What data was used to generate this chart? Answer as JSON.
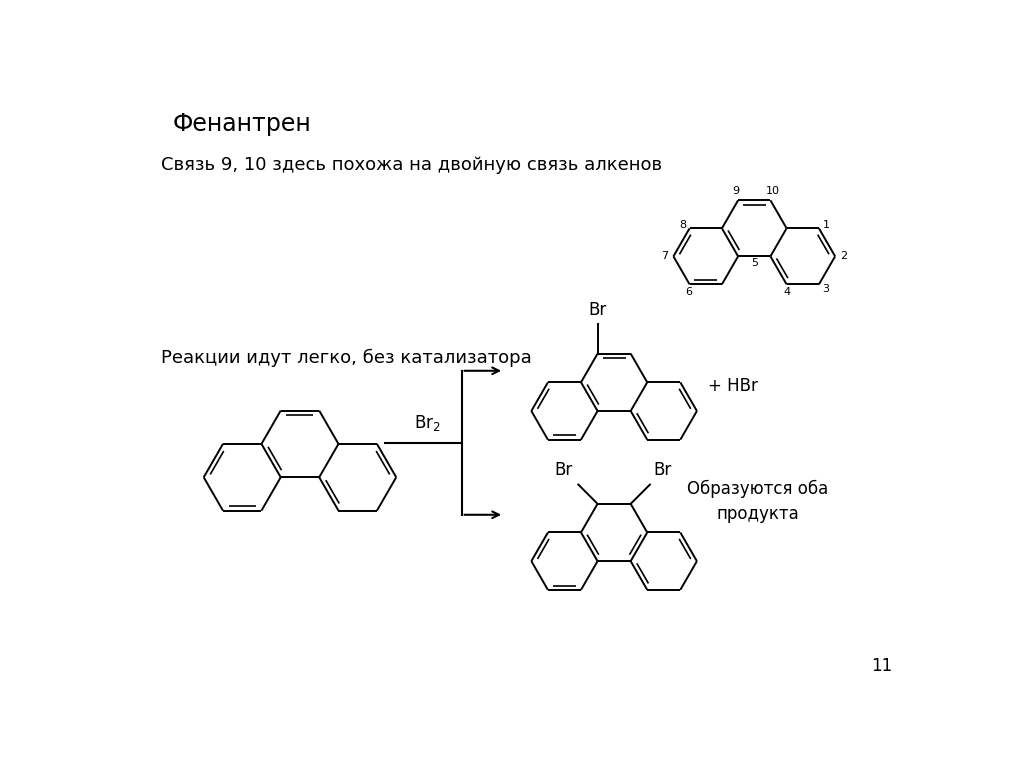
{
  "title": "Фенантрен",
  "subtitle": "Связь 9, 10 здесь похожа на двойную связь алкенов",
  "text_reaction": "Реакции идут легко, без катализатора",
  "product1_label": "+ HBr",
  "product2_label": "Образуются оба\nпродукта",
  "page_number": "11",
  "bg_color": "#ffffff",
  "font_size_title": 17,
  "font_size_text": 13,
  "font_size_label": 12,
  "font_size_numbering": 8
}
